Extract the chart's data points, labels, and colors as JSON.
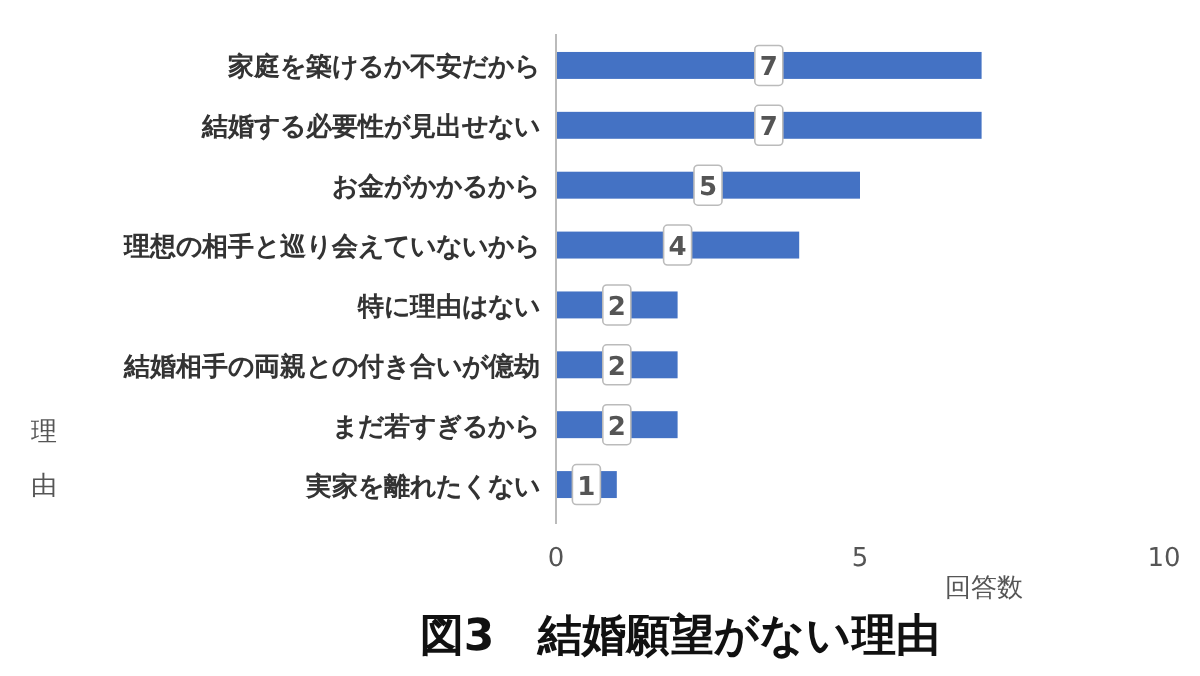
{
  "chart_data": {
    "type": "bar",
    "orientation": "horizontal",
    "title": "図3　結婚願望がない理由",
    "xlabel": "回答数",
    "ylabel": "理由",
    "categories": [
      "家庭を築けるか不安だから",
      "結婚する必要性が見出せない",
      "お金がかかるから",
      "理想の相手と巡り会えていないから",
      "特に理由はない",
      "結婚相手の両親との付き合いが億劫",
      "まだ若すぎるから",
      "実家を離れたくない"
    ],
    "values": [
      7,
      7,
      5,
      4,
      2,
      2,
      2,
      1
    ],
    "color": "#4472c4",
    "xlim": [
      0,
      10
    ],
    "xticks": [
      0,
      5,
      10
    ],
    "data_labels": true,
    "grid": false
  }
}
